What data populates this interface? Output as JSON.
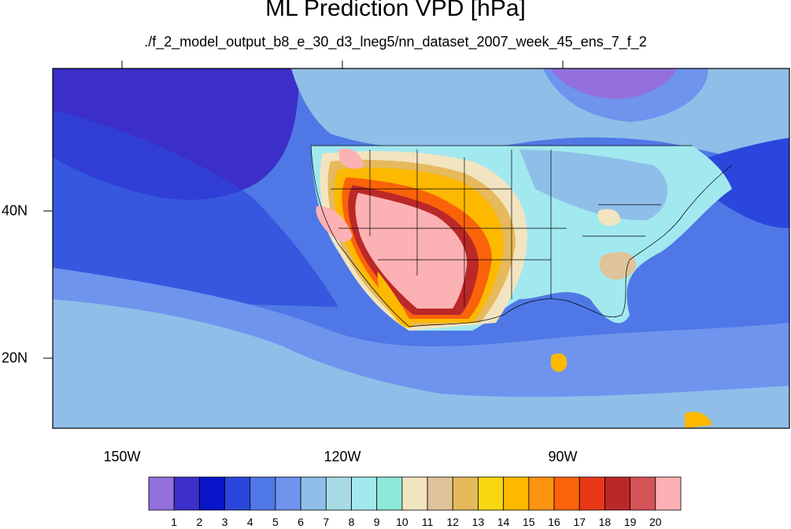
{
  "title": "ML Prediction VPD [hPa]",
  "subtitle": "./f_2_model_output_b8_e_30_d3_lneg5/nn_dataset_2007_week_45_ens_7_f_2",
  "lon_labels": [
    "150W",
    "120W",
    "90W"
  ],
  "lat_labels": [
    "40N",
    "20N"
  ],
  "colorbar": {
    "labels": [
      "1",
      "2",
      "3",
      "4",
      "5",
      "6",
      "7",
      "8",
      "9",
      "10",
      "11",
      "12",
      "13",
      "14",
      "15",
      "16",
      "17",
      "18",
      "19",
      "20"
    ],
    "colors": [
      "#9370db",
      "#3c2ec8",
      "#0a14c8",
      "#2a46dc",
      "#4f78e6",
      "#6e94ee",
      "#8fbfe8",
      "#a6dbe6",
      "#a2e8ef",
      "#8ee8d8",
      "#f2e4c0",
      "#dfc39a",
      "#e6b95c",
      "#f7d712",
      "#fcb900",
      "#fb9313",
      "#fa6309",
      "#e83818",
      "#bb2828",
      "#d45458",
      "#fcb2b4"
    ]
  },
  "region_colors": {
    "land_coast": "#8fbfe8",
    "ocean_main": "#4f78e6",
    "ocean_deep": "#3c2ec8",
    "southwest_core": "#fcb2b4",
    "great_plains": "#fcb900",
    "midwest": "#a2e8ef",
    "southeast_patch": "#dfc39a"
  }
}
